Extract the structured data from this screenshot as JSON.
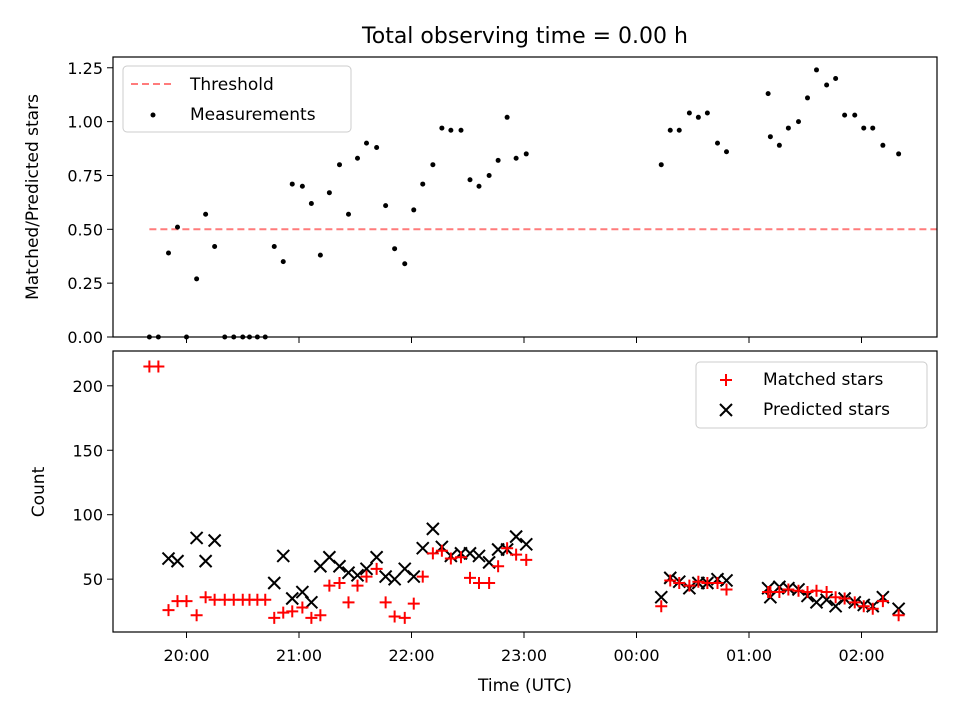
{
  "chart_data": [
    {
      "type": "scatter",
      "title": "Total observing time = 0.00 h",
      "ylabel": "Matched/Predicted stars",
      "ylim": [
        0,
        1.3
      ],
      "yticks": [
        "0.00",
        "0.25",
        "0.50",
        "0.75",
        "1.00",
        "1.25"
      ],
      "x_unit": "hours since 19:00 UTC",
      "threshold": {
        "name": "Threshold",
        "value": 0.5,
        "x": [
          0.67,
          7.67
        ],
        "color": "#ff7b7b"
      },
      "legend": {
        "placement": "top-left",
        "entries": [
          "Threshold",
          "Measurements"
        ]
      },
      "series": [
        {
          "name": "Measurements",
          "color": "#000000",
          "points": [
            [
              0.67,
              0.0
            ],
            [
              0.75,
              0.0
            ],
            [
              0.84,
              0.39
            ],
            [
              0.92,
              0.51
            ],
            [
              1.0,
              0.0
            ],
            [
              1.09,
              0.27
            ],
            [
              1.17,
              0.57
            ],
            [
              1.25,
              0.42
            ],
            [
              1.34,
              0.0
            ],
            [
              1.42,
              0.0
            ],
            [
              1.5,
              0.0
            ],
            [
              1.56,
              0.0
            ],
            [
              1.63,
              0.0
            ],
            [
              1.7,
              0.0
            ],
            [
              1.78,
              0.42
            ],
            [
              1.86,
              0.35
            ],
            [
              1.94,
              0.71
            ],
            [
              2.03,
              0.7
            ],
            [
              2.11,
              0.62
            ],
            [
              2.19,
              0.38
            ],
            [
              2.27,
              0.67
            ],
            [
              2.36,
              0.8
            ],
            [
              2.44,
              0.57
            ],
            [
              2.52,
              0.83
            ],
            [
              2.6,
              0.9
            ],
            [
              2.69,
              0.88
            ],
            [
              2.77,
              0.61
            ],
            [
              2.85,
              0.41
            ],
            [
              2.94,
              0.34
            ],
            [
              3.02,
              0.59
            ],
            [
              3.1,
              0.71
            ],
            [
              3.19,
              0.8
            ],
            [
              3.27,
              0.97
            ],
            [
              3.35,
              0.96
            ],
            [
              3.44,
              0.96
            ],
            [
              3.52,
              0.73
            ],
            [
              3.6,
              0.7
            ],
            [
              3.69,
              0.75
            ],
            [
              3.77,
              0.82
            ],
            [
              3.85,
              1.02
            ],
            [
              3.93,
              0.83
            ],
            [
              4.02,
              0.85
            ],
            [
              5.22,
              0.8
            ],
            [
              5.3,
              0.96
            ],
            [
              5.38,
              0.96
            ],
            [
              5.47,
              1.04
            ],
            [
              5.55,
              1.02
            ],
            [
              5.63,
              1.04
            ],
            [
              5.72,
              0.9
            ],
            [
              5.8,
              0.86
            ],
            [
              6.17,
              1.13
            ],
            [
              6.19,
              0.93
            ],
            [
              6.27,
              0.89
            ],
            [
              6.35,
              0.97
            ],
            [
              6.44,
              1.0
            ],
            [
              6.52,
              1.11
            ],
            [
              6.6,
              1.24
            ],
            [
              6.69,
              1.17
            ],
            [
              6.77,
              1.2
            ],
            [
              6.85,
              1.03
            ],
            [
              6.94,
              1.03
            ],
            [
              7.02,
              0.97
            ],
            [
              7.1,
              0.97
            ],
            [
              7.19,
              0.89
            ],
            [
              7.33,
              0.85
            ]
          ]
        }
      ]
    },
    {
      "type": "scatter",
      "xlabel": "Time (UTC)",
      "ylabel": "Count",
      "ylim": [
        9,
        227
      ],
      "yticks": [
        "50",
        "100",
        "150",
        "200"
      ],
      "xticks": [
        "20:00",
        "21:00",
        "22:00",
        "23:00",
        "00:00",
        "01:00",
        "02:00"
      ],
      "x_unit": "hours since 19:00 UTC",
      "legend": {
        "placement": "top-right",
        "entries": [
          "Matched stars",
          "Predicted stars"
        ]
      },
      "series": [
        {
          "name": "Matched stars",
          "marker": "plus",
          "color": "#ff0000",
          "points": [
            [
              0.67,
              215
            ],
            [
              0.75,
              215
            ],
            [
              0.84,
              26
            ],
            [
              0.92,
              33
            ],
            [
              1.0,
              33
            ],
            [
              1.09,
              22
            ],
            [
              1.17,
              36
            ],
            [
              1.25,
              34
            ],
            [
              1.34,
              34
            ],
            [
              1.42,
              34
            ],
            [
              1.5,
              34
            ],
            [
              1.56,
              34
            ],
            [
              1.63,
              34
            ],
            [
              1.7,
              34
            ],
            [
              1.78,
              20
            ],
            [
              1.86,
              24
            ],
            [
              1.94,
              25
            ],
            [
              2.03,
              28
            ],
            [
              2.11,
              20
            ],
            [
              2.19,
              22
            ],
            [
              2.27,
              45
            ],
            [
              2.36,
              47
            ],
            [
              2.44,
              32
            ],
            [
              2.52,
              45
            ],
            [
              2.6,
              52
            ],
            [
              2.69,
              58
            ],
            [
              2.77,
              32
            ],
            [
              2.85,
              21
            ],
            [
              2.94,
              20
            ],
            [
              3.02,
              31
            ],
            [
              3.1,
              52
            ],
            [
              3.19,
              70
            ],
            [
              3.27,
              72
            ],
            [
              3.35,
              66
            ],
            [
              3.44,
              67
            ],
            [
              3.52,
              51
            ],
            [
              3.6,
              47
            ],
            [
              3.69,
              47
            ],
            [
              3.77,
              60
            ],
            [
              3.85,
              74
            ],
            [
              3.93,
              69
            ],
            [
              4.02,
              65
            ],
            [
              5.22,
              29
            ],
            [
              5.3,
              49
            ],
            [
              5.38,
              47
            ],
            [
              5.47,
              45
            ],
            [
              5.55,
              48
            ],
            [
              5.63,
              47
            ],
            [
              5.72,
              47
            ],
            [
              5.8,
              42
            ],
            [
              6.17,
              40
            ],
            [
              6.19,
              40
            ],
            [
              6.27,
              40
            ],
            [
              6.35,
              42
            ],
            [
              6.44,
              41
            ],
            [
              6.52,
              40
            ],
            [
              6.6,
              41
            ],
            [
              6.69,
              40
            ],
            [
              6.77,
              36
            ],
            [
              6.85,
              35
            ],
            [
              6.94,
              32
            ],
            [
              7.02,
              29
            ],
            [
              7.1,
              27
            ],
            [
              7.19,
              33
            ],
            [
              7.33,
              22
            ]
          ]
        },
        {
          "name": "Predicted stars",
          "marker": "x",
          "color": "#000000",
          "points": [
            [
              0.84,
              66
            ],
            [
              0.92,
              64
            ],
            [
              1.09,
              82
            ],
            [
              1.17,
              64
            ],
            [
              1.25,
              80
            ],
            [
              1.78,
              47
            ],
            [
              1.86,
              68
            ],
            [
              1.94,
              35
            ],
            [
              2.03,
              40
            ],
            [
              2.11,
              32
            ],
            [
              2.19,
              60
            ],
            [
              2.27,
              67
            ],
            [
              2.36,
              60
            ],
            [
              2.44,
              55
            ],
            [
              2.52,
              53
            ],
            [
              2.6,
              58
            ],
            [
              2.69,
              67
            ],
            [
              2.77,
              52
            ],
            [
              2.85,
              50
            ],
            [
              2.94,
              58
            ],
            [
              3.02,
              52
            ],
            [
              3.1,
              74
            ],
            [
              3.19,
              89
            ],
            [
              3.27,
              75
            ],
            [
              3.35,
              68
            ],
            [
              3.44,
              70
            ],
            [
              3.52,
              70
            ],
            [
              3.6,
              68
            ],
            [
              3.69,
              63
            ],
            [
              3.77,
              73
            ],
            [
              3.85,
              73
            ],
            [
              3.93,
              83
            ],
            [
              4.02,
              77
            ],
            [
              5.22,
              36
            ],
            [
              5.3,
              51
            ],
            [
              5.38,
              48
            ],
            [
              5.47,
              43
            ],
            [
              5.55,
              47
            ],
            [
              5.63,
              47
            ],
            [
              5.72,
              50
            ],
            [
              5.8,
              49
            ],
            [
              6.17,
              43
            ],
            [
              6.19,
              36
            ],
            [
              6.27,
              44
            ],
            [
              6.35,
              43
            ],
            [
              6.44,
              42
            ],
            [
              6.52,
              37
            ],
            [
              6.6,
              32
            ],
            [
              6.69,
              34
            ],
            [
              6.77,
              29
            ],
            [
              6.85,
              35
            ],
            [
              6.94,
              32
            ],
            [
              7.02,
              30
            ],
            [
              7.1,
              29
            ],
            [
              7.19,
              36
            ],
            [
              7.33,
              27
            ]
          ]
        }
      ]
    }
  ]
}
